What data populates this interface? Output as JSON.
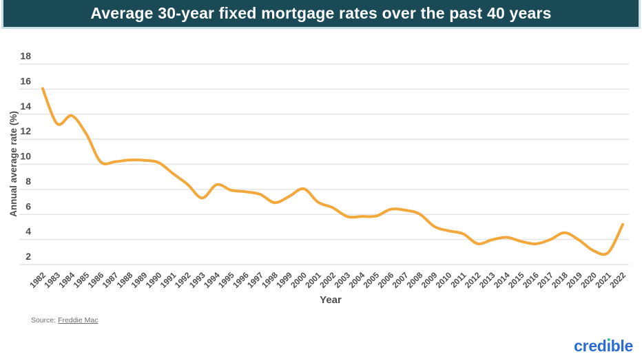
{
  "title": "Average 30-year fixed mortgage rates over the past 40 years",
  "source": {
    "prefix": "Source: ",
    "link_text": "Freddie Mac"
  },
  "logo": {
    "pre": "cred",
    "i_char": "ı",
    "post": "ble"
  },
  "chart_data": {
    "type": "line",
    "title": "Average 30-year fixed mortgage rates over the past 40 years",
    "xlabel": "Year",
    "ylabel": "Annual average rate (%)",
    "x": [
      1982,
      1983,
      1984,
      1985,
      1986,
      1987,
      1988,
      1989,
      1990,
      1991,
      1992,
      1993,
      1994,
      1995,
      1996,
      1997,
      1998,
      1999,
      2000,
      2001,
      2002,
      2003,
      2004,
      2005,
      2006,
      2007,
      2008,
      2009,
      2010,
      2011,
      2012,
      2013,
      2014,
      2015,
      2016,
      2017,
      2018,
      2019,
      2020,
      2021,
      2022
    ],
    "values": [
      16.04,
      13.24,
      13.88,
      12.43,
      10.19,
      10.21,
      10.34,
      10.32,
      10.13,
      9.25,
      8.39,
      7.31,
      8.38,
      7.93,
      7.81,
      7.6,
      6.94,
      7.44,
      8.05,
      6.97,
      6.54,
      5.83,
      5.84,
      5.87,
      6.41,
      6.34,
      6.03,
      5.04,
      4.69,
      4.45,
      3.66,
      3.98,
      4.17,
      3.85,
      3.65,
      3.99,
      4.54,
      3.94,
      3.1,
      2.96,
      5.2
    ],
    "yticks": [
      2,
      4,
      6,
      8,
      10,
      12,
      14,
      16,
      18
    ],
    "ylim": [
      2,
      18
    ],
    "grid": true,
    "legend": "none",
    "line_color": "#F3A83C"
  },
  "colors": {
    "bar_bg": "#1B4A57",
    "bar_border": "#CBDFE6",
    "line": "#F3A83C",
    "grid": "#E4E4E4",
    "axis_text": "#4D4D4D",
    "source_text": "#6E6E6E",
    "logo_blue": "#2A6BD3",
    "logo_green": "#3FBF92"
  }
}
